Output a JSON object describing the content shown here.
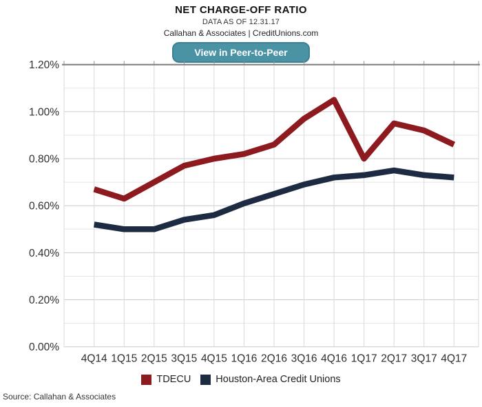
{
  "header": {
    "title": "NET CHARGE-OFF RATIO",
    "subtitle": "DATA AS OF 12.31.17",
    "byline": "Callahan & Associates | CreditUnions.com",
    "button_label": "View in Peer-to-Peer"
  },
  "source": "Source: Callahan & Associates",
  "colors": {
    "top_border": "#808080",
    "grid_major": "#CCCCCC",
    "grid_minor": "#E5E5E5",
    "grid_vertical": "#D8D8D8",
    "tick_stub": "#909090",
    "button_bg": "#4A93A5",
    "button_border": "#3C8093",
    "axis_text": "#2E2E2E"
  },
  "chart_data": {
    "type": "line",
    "title": "NET CHARGE-OFF RATIO",
    "xlabel": "",
    "ylabel": "",
    "ylim": [
      0,
      1.2
    ],
    "ytick_step": 0.2,
    "minor_grid_step": 0.1,
    "grid": true,
    "legend_position": "bottom",
    "ytick_labels": [
      "0.00%",
      "0.20%",
      "0.40%",
      "0.60%",
      "0.80%",
      "1.00%",
      "1.20%"
    ],
    "categories": [
      "4Q14",
      "1Q15",
      "2Q15",
      "3Q15",
      "4Q15",
      "1Q16",
      "2Q16",
      "3Q16",
      "4Q16",
      "1Q17",
      "2Q17",
      "3Q17",
      "4Q17"
    ],
    "series": [
      {
        "name": "TDECU",
        "color": "#8C1A1E",
        "values": [
          0.67,
          0.63,
          0.7,
          0.77,
          0.8,
          0.82,
          0.86,
          0.97,
          1.05,
          0.8,
          0.95,
          0.92,
          0.86
        ]
      },
      {
        "name": "Houston-Area Credit Unions",
        "color": "#1C2B42",
        "values": [
          0.52,
          0.5,
          0.5,
          0.54,
          0.56,
          0.61,
          0.65,
          0.69,
          0.72,
          0.73,
          0.75,
          0.73,
          0.72
        ]
      }
    ]
  }
}
